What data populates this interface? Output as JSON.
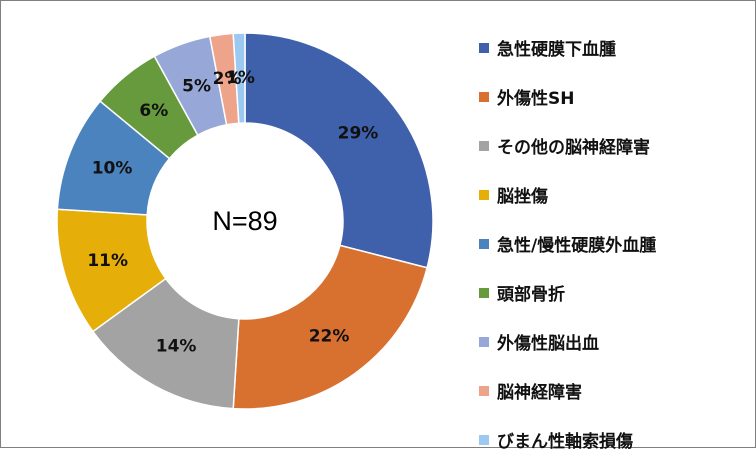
{
  "chart_data": {
    "type": "pie",
    "donut": true,
    "center_text": "N=89",
    "legend_position": "right",
    "slices": [
      {
        "label": "急性硬膜下血腫",
        "value": 29,
        "display": "29%",
        "color": "#3F61AB"
      },
      {
        "label": "外傷性SH",
        "value": 22,
        "display": "22%",
        "color": "#D87030"
      },
      {
        "label": "その他の脳神経障害",
        "value": 14,
        "display": "14%",
        "color": "#A3A3A3"
      },
      {
        "label": "脳挫傷",
        "value": 11,
        "display": "11%",
        "color": "#E6AE09"
      },
      {
        "label": "急性/慢性硬膜外血腫",
        "value": 10,
        "display": "10%",
        "color": "#4A83BD"
      },
      {
        "label": "頭部骨折",
        "value": 6,
        "display": "6%",
        "color": "#669A3C"
      },
      {
        "label": "外傷性脳出血",
        "value": 5,
        "display": "5%",
        "color": "#97A8D8"
      },
      {
        "label": "脳神経障害",
        "value": 2,
        "display": "2%",
        "color": "#EEA48A"
      },
      {
        "label": "びまん性軸索損傷",
        "value": 1,
        "display": "1%",
        "color": "#9CC9F2"
      }
    ]
  }
}
